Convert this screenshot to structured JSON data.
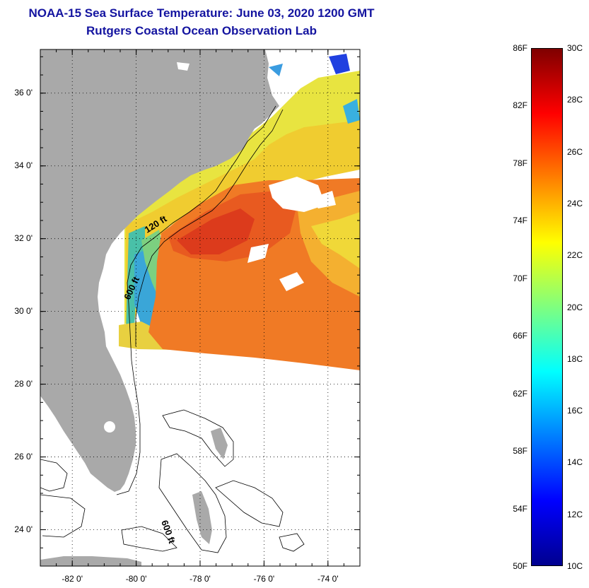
{
  "title": {
    "line1": "NOAA-15 Sea Surface Temperature:  June 03, 2020 1200 GMT",
    "line2": "Rutgers Coastal Ocean Observation Lab"
  },
  "map": {
    "lat_range": [
      23,
      37.2
    ],
    "lon_range": [
      -83,
      -73
    ],
    "lat_ticks": [
      {
        "value": 36,
        "label": "36 0'"
      },
      {
        "value": 34,
        "label": "34 0'"
      },
      {
        "value": 32,
        "label": "32 0'"
      },
      {
        "value": 30,
        "label": "30 0'"
      },
      {
        "value": 28,
        "label": "28 0'"
      },
      {
        "value": 26,
        "label": "26 0'"
      },
      {
        "value": 24,
        "label": "24 0'"
      }
    ],
    "lon_ticks": [
      {
        "value": -82,
        "label": "-82 0'"
      },
      {
        "value": -80,
        "label": "-80 0'"
      },
      {
        "value": -78,
        "label": "-78 0'"
      },
      {
        "value": -76,
        "label": "-76 0'"
      },
      {
        "value": -74,
        "label": "-74 0'"
      }
    ],
    "grid": "dotted",
    "contour_labels": [
      "120 ft",
      "600 ft",
      "600 ft"
    ],
    "land_color": "#a9a9a9"
  },
  "colorbar": {
    "fahrenheit_labels": [
      "86F",
      "82F",
      "78F",
      "74F",
      "70F",
      "66F",
      "62F",
      "58F",
      "54F",
      "50F"
    ],
    "celsius_labels": [
      "30C",
      "28C",
      "26C",
      "24C",
      "22C",
      "20C",
      "18C",
      "16C",
      "14C",
      "12C",
      "10C"
    ],
    "range_c": [
      10,
      30
    ],
    "colormap": "jet"
  }
}
